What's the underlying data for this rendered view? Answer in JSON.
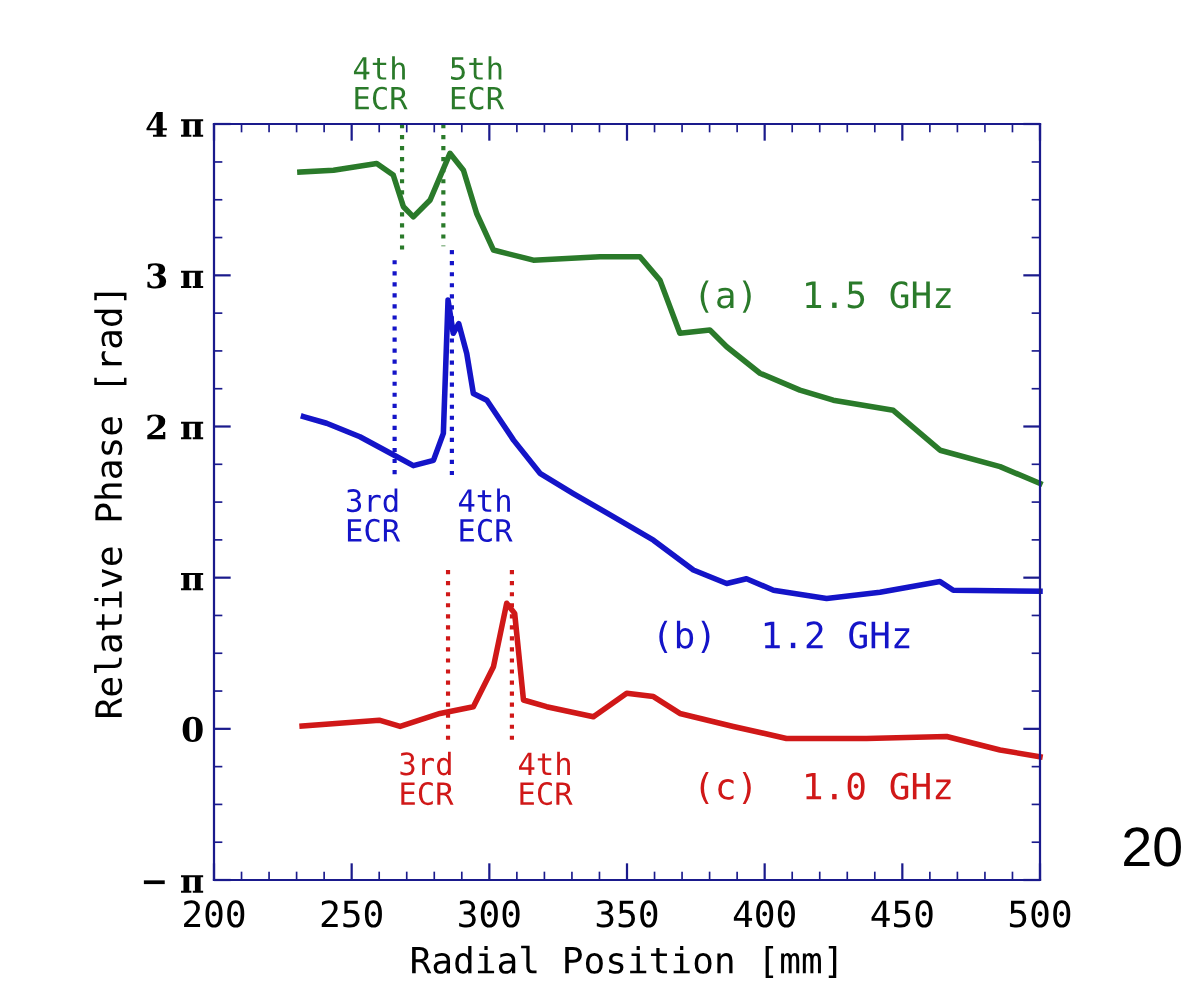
{
  "chart_data": {
    "type": "line",
    "xlabel": "Radial Position [mm]",
    "ylabel": "Relative Phase [rad]",
    "xlim": [
      200,
      500
    ],
    "xticks": [
      200,
      250,
      300,
      350,
      400,
      450,
      500
    ],
    "ylim": [
      -3.1416,
      12.57
    ],
    "yticks": [
      {
        "value": -3.1416,
        "label": "− π"
      },
      0,
      {
        "value": 3.1416,
        "label": "π"
      },
      {
        "value": 6.2832,
        "label": "2 π"
      },
      {
        "value": 9.4248,
        "label": "3 π"
      },
      {
        "value": 12.57,
        "label": "4 π"
      }
    ],
    "grid": false,
    "legend": false,
    "line_style": "solid",
    "marker": "none",
    "series": [
      {
        "name": "(a)  1.5 GHz",
        "color": "#2a7a2a",
        "x": [
          231.2,
          243.4,
          259.1,
          265.1,
          268.8,
          272.4,
          278.5,
          285.7,
          290.6,
          295.4,
          301.5,
          316.0,
          340.2,
          354.7,
          362.0,
          369.2,
          380.1,
          386.2,
          398.3,
          412.8,
          424.9,
          446.7,
          463.7,
          485.5,
          500
        ],
        "values": [
          11.57,
          11.61,
          11.75,
          11.51,
          10.85,
          10.64,
          10.99,
          11.96,
          11.61,
          10.71,
          9.95,
          9.74,
          9.81,
          9.81,
          9.32,
          8.22,
          8.29,
          7.94,
          7.39,
          7.04,
          6.83,
          6.62,
          5.79,
          5.45,
          5.1
        ]
      },
      {
        "name": "(b)  1.2 GHz",
        "color": "#1414c8",
        "x": [
          232.5,
          240.9,
          253.0,
          266.3,
          272.4,
          279.7,
          283.3,
          285.0,
          286.9,
          288.9,
          291.8,
          294.2,
          299.1,
          308.8,
          318.4,
          330.5,
          345.0,
          359.6,
          374.1,
          386.2,
          393.4,
          403.2,
          422.5,
          441.9,
          463.7,
          468.5,
          500
        ],
        "values": [
          6.49,
          6.35,
          6.07,
          5.66,
          5.47,
          5.58,
          6.14,
          8.91,
          8.22,
          8.42,
          7.8,
          6.97,
          6.83,
          6.0,
          5.31,
          4.89,
          4.41,
          3.92,
          3.3,
          3.02,
          3.12,
          2.88,
          2.71,
          2.84,
          3.06,
          2.88,
          2.86
        ]
      },
      {
        "name": "(c)  1.0 GHz",
        "color": "#d01818",
        "x": [
          232.0,
          260.0,
          267.6,
          282.1,
          294.2,
          301.5,
          306.3,
          309.2,
          312.4,
          320.8,
          337.8,
          349.9,
          359.6,
          369.2,
          388.6,
          407.9,
          437.0,
          466.1,
          485.5,
          500
        ],
        "values": [
          0.06,
          0.18,
          0.05,
          0.32,
          0.46,
          1.29,
          2.61,
          2.4,
          0.6,
          0.46,
          0.25,
          0.74,
          0.67,
          0.32,
          0.05,
          -0.2,
          -0.2,
          -0.16,
          -0.44,
          -0.58
        ]
      },
      {
        "color": "#2a7a2a",
        "line_style": "dotted",
        "x": [
          268.3,
          268.3
        ],
        "values": [
          12.57,
          9.95
        ]
      },
      {
        "color": "#2a7a2a",
        "line_style": "dotted",
        "x": [
          283.3,
          283.3
        ],
        "values": [
          12.57,
          10.03
        ]
      },
      {
        "color": "#1414c8",
        "line_style": "dotted",
        "x": [
          265.6,
          265.6
        ],
        "values": [
          9.74,
          5.17
        ]
      },
      {
        "color": "#1414c8",
        "line_style": "dotted",
        "x": [
          286.4,
          286.4
        ],
        "values": [
          9.95,
          5.17
        ]
      },
      {
        "color": "#d01818",
        "line_style": "dotted",
        "x": [
          285.0,
          285.0
        ],
        "values": [
          3.3,
          -0.3
        ]
      },
      {
        "color": "#d01818",
        "line_style": "dotted",
        "x": [
          308.2,
          308.2
        ],
        "values": [
          3.3,
          -0.3
        ]
      }
    ],
    "annotations": [
      {
        "text": "4th\nECR",
        "x": 268.3,
        "y": 12.57
      },
      {
        "text": "5th\nECR",
        "x": 283.3,
        "y": 12.57
      },
      {
        "text": "3rd\nECR",
        "x": 265.6,
        "y": 5.17
      },
      {
        "text": "4th\nECR",
        "x": 286.4,
        "y": 5.17
      },
      {
        "text": "3rd\nECR",
        "x": 285.0,
        "y": -0.3
      },
      {
        "text": "4th\nECR",
        "x": 308.2,
        "y": -0.3
      },
      "20"
    ]
  }
}
